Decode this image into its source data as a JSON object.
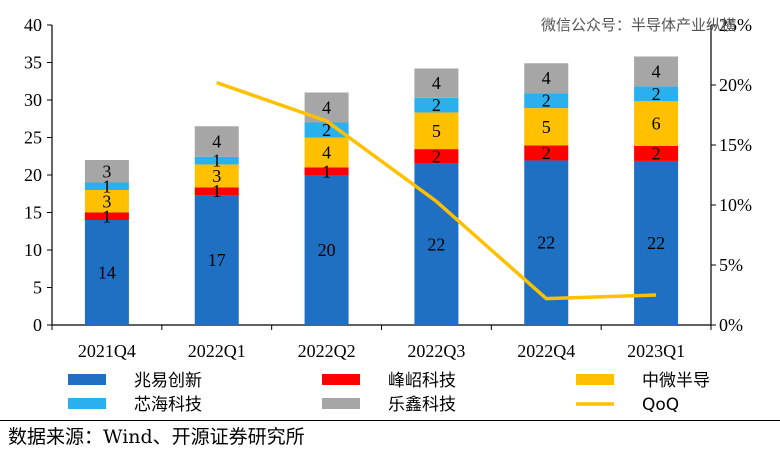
{
  "chart_data": {
    "type": "bar",
    "stacked": true,
    "categories": [
      "2021Q4",
      "2022Q1",
      "2022Q2",
      "2022Q3",
      "2022Q4",
      "2023Q1"
    ],
    "series": [
      {
        "name": "兆易创新",
        "color": "#1f6fc2",
        "values": [
          14,
          17,
          20,
          22,
          22,
          22
        ]
      },
      {
        "name": "峰岹科技",
        "color": "#ff0000",
        "values": [
          1,
          1,
          1,
          2,
          2,
          2
        ]
      },
      {
        "name": "中微半导",
        "color": "#ffc000",
        "values": [
          3,
          3,
          4,
          5,
          5,
          6
        ]
      },
      {
        "name": "芯海科技",
        "color": "#2ab0ec",
        "values": [
          1,
          1,
          2,
          2,
          2,
          2
        ]
      },
      {
        "name": "乐鑫科技",
        "color": "#a6a6a6",
        "values": [
          3,
          4,
          4,
          4,
          4,
          4
        ]
      }
    ],
    "bar_totals_shown": [
      22,
      26.5,
      31,
      34.2,
      34.9,
      35.8
    ],
    "line_series": {
      "name": "QoQ",
      "color": "#ffc000",
      "axis": "right",
      "values_percent": [
        null,
        20.2,
        17.0,
        10.3,
        2.2,
        2.5
      ]
    },
    "y_left": {
      "min": 0,
      "max": 40,
      "ticks": [
        "0",
        "5",
        "10",
        "15",
        "20",
        "25",
        "30",
        "35",
        "40"
      ]
    },
    "y_right": {
      "min": 0,
      "max": 25,
      "ticks": [
        "0%",
        "5%",
        "10%",
        "15%",
        "20%",
        "25%"
      ]
    },
    "grid": false,
    "legend_position": "bottom",
    "watermark": "微信公众号：半导体产业纵横"
  },
  "source_text": "数据来源：Wind、开源证券研究所"
}
